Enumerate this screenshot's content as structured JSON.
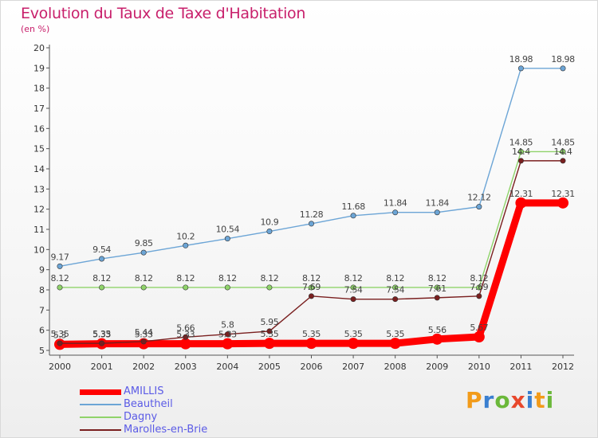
{
  "header": {
    "title": "Evolution du Taux de Taxe d'Habitation",
    "subtitle": "(en %)"
  },
  "logo": {
    "text": "Proxiti"
  },
  "chart_data": {
    "type": "line",
    "title": "Evolution du Taux de Taxe d'Habitation",
    "ylabel": "(en %)",
    "xlabel": "",
    "x": [
      "2000",
      "2001",
      "2002",
      "2003",
      "2004",
      "2005",
      "2006",
      "2007",
      "2008",
      "2009",
      "2010",
      "2011",
      "2012"
    ],
    "ylim": [
      5,
      20
    ],
    "yticks": [
      5,
      6,
      7,
      8,
      9,
      10,
      11,
      12,
      13,
      14,
      15,
      16,
      17,
      18,
      19,
      20
    ],
    "grid": false,
    "legend_position": "bottom-left",
    "series": [
      {
        "name": "AMILLIS",
        "color": "#ff0000",
        "emphasis": true,
        "values": [
          5.3,
          5.33,
          5.33,
          5.33,
          5.33,
          5.35,
          5.35,
          5.35,
          5.35,
          5.56,
          5.67,
          12.31,
          12.31
        ],
        "labels": [
          "5.3",
          "5.33",
          "5.33",
          "5.33",
          "5.33",
          "5.35",
          "5.35",
          "5.35",
          "5.35",
          "5.56",
          "5.67",
          "12.31",
          "12.31"
        ]
      },
      {
        "name": "Beautheil",
        "color": "#6ca5d6",
        "values": [
          9.17,
          9.54,
          9.85,
          10.2,
          10.54,
          10.9,
          11.28,
          11.68,
          11.84,
          11.84,
          12.12,
          18.98,
          18.98
        ],
        "labels": [
          "9.17",
          "9.54",
          "9.85",
          "10.2",
          "10.54",
          "10.9",
          "11.28",
          "11.68",
          "11.84",
          "11.84",
          "12.12",
          "18.98",
          "18.98"
        ]
      },
      {
        "name": "Dagny",
        "color": "#8fd36a",
        "values": [
          8.12,
          8.12,
          8.12,
          8.12,
          8.12,
          8.12,
          8.12,
          8.12,
          8.12,
          8.12,
          8.12,
          14.85,
          14.85
        ],
        "labels": [
          "8.12",
          "8.12",
          "8.12",
          "8.12",
          "8.12",
          "8.12",
          "8.12",
          "8.12",
          "8.12",
          "8.12",
          "8.12",
          "14.85",
          "14.85"
        ]
      },
      {
        "name": "Marolles-en-Brie",
        "color": "#7a1f1f",
        "values": [
          5.35,
          5.35,
          5.44,
          5.66,
          5.8,
          5.95,
          7.69,
          7.54,
          7.54,
          7.61,
          7.69,
          14.4,
          14.4
        ],
        "labels": [
          "5.35",
          "5.35",
          "5.44",
          "5.66",
          "5.8",
          "5.95",
          "7.69",
          "7.54",
          "7.54",
          "7.61",
          "7.69",
          "14.4",
          "14.4"
        ]
      }
    ]
  }
}
